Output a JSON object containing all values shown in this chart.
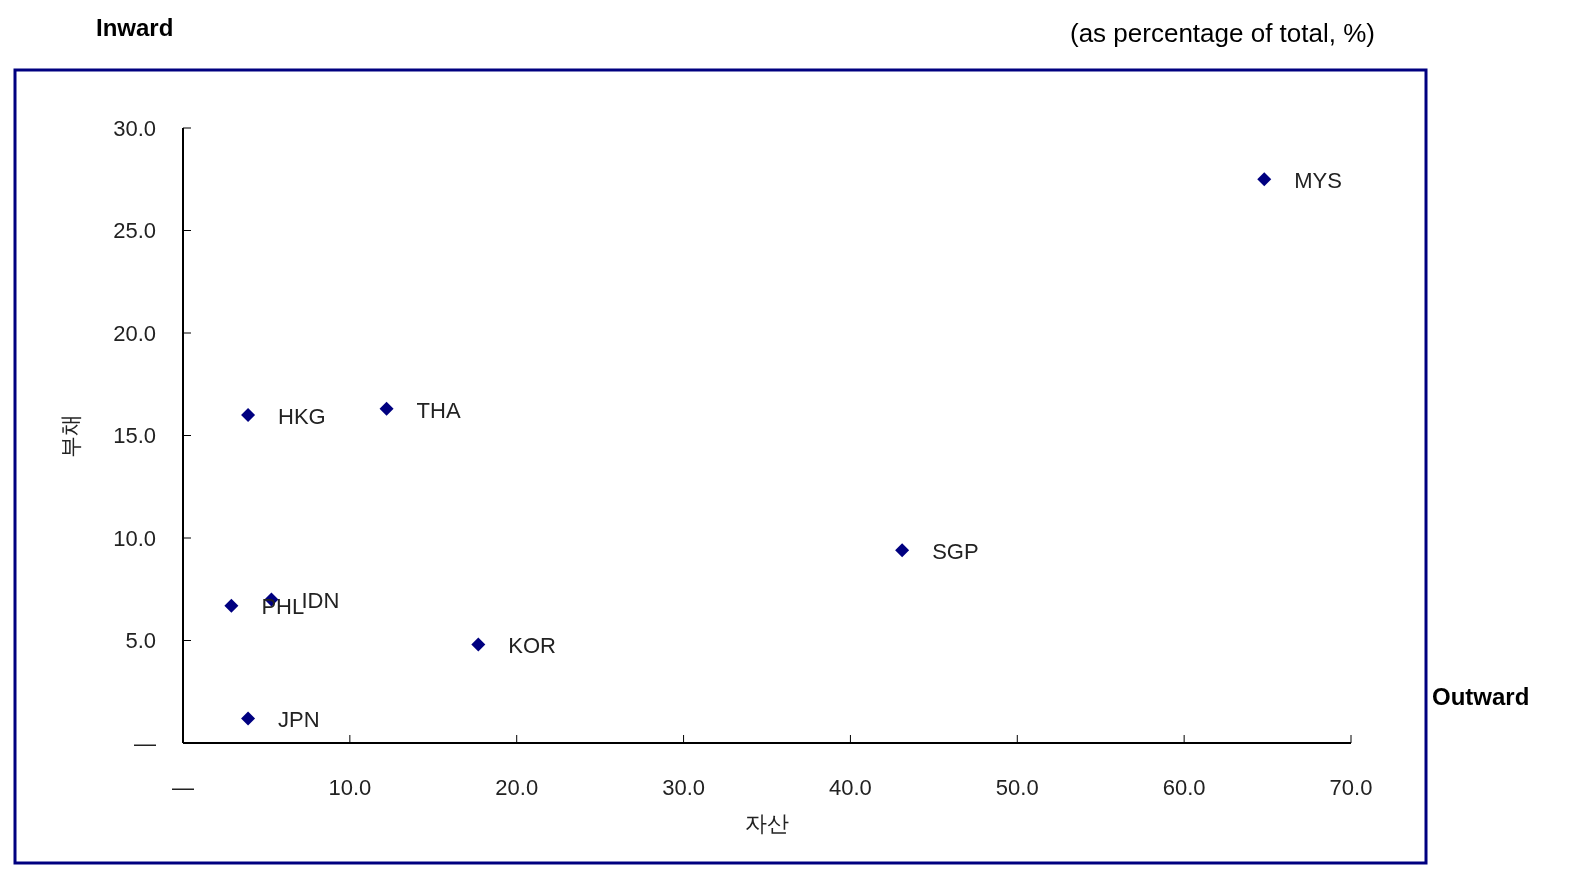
{
  "chart_data": {
    "type": "scatter",
    "xlabel": "자산",
    "ylabel": "부채",
    "marker": "diamond",
    "grid": false,
    "x": [
      64.8,
      3.9,
      12.2,
      43.1,
      2.9,
      5.3,
      17.7,
      3.9
    ],
    "series": [
      {
        "color": "#000080",
        "values": [
          27.5,
          16.0,
          16.3,
          9.4,
          6.7,
          7.0,
          4.8,
          1.2
        ]
      }
    ],
    "xlim": [
      0,
      70
    ],
    "ylim": [
      0,
      30
    ],
    "xticks": [
      {
        "value": 0,
        "label": "—"
      },
      {
        "value": 10,
        "label": "10.0"
      },
      {
        "value": 20,
        "label": "20.0"
      },
      {
        "value": 30,
        "label": "30.0"
      },
      {
        "value": 40,
        "label": "40.0"
      },
      {
        "value": 50,
        "label": "50.0"
      },
      {
        "value": 60,
        "label": "60.0"
      },
      {
        "value": 70,
        "label": "70.0"
      }
    ],
    "yticks": [
      {
        "value": 0,
        "label": "—"
      },
      {
        "value": 5,
        "label": "5.0"
      },
      {
        "value": 10,
        "label": "10.0"
      },
      {
        "value": 15,
        "label": "15.0"
      },
      {
        "value": 20,
        "label": "20.0"
      },
      {
        "value": 25,
        "label": "25.0"
      },
      {
        "value": 30,
        "label": "30.0"
      }
    ],
    "annotations": [
      {
        "text": "MYS",
        "x": 64.8,
        "y": 27.5
      },
      {
        "text": "HKG",
        "x": 3.9,
        "y": 16.0
      },
      {
        "text": "THA",
        "x": 12.2,
        "y": 16.3
      },
      {
        "text": "SGP",
        "x": 43.1,
        "y": 9.4
      },
      {
        "text": "PHL",
        "x": 2.9,
        "y": 6.7
      },
      {
        "text": "IDN",
        "x": 5.3,
        "y": 7.0
      },
      {
        "text": "KOR",
        "x": 17.7,
        "y": 4.8
      },
      {
        "text": "JPN",
        "x": 3.9,
        "y": 1.2
      },
      "Inward",
      "(as percentage of total, %)",
      "Outward"
    ]
  }
}
